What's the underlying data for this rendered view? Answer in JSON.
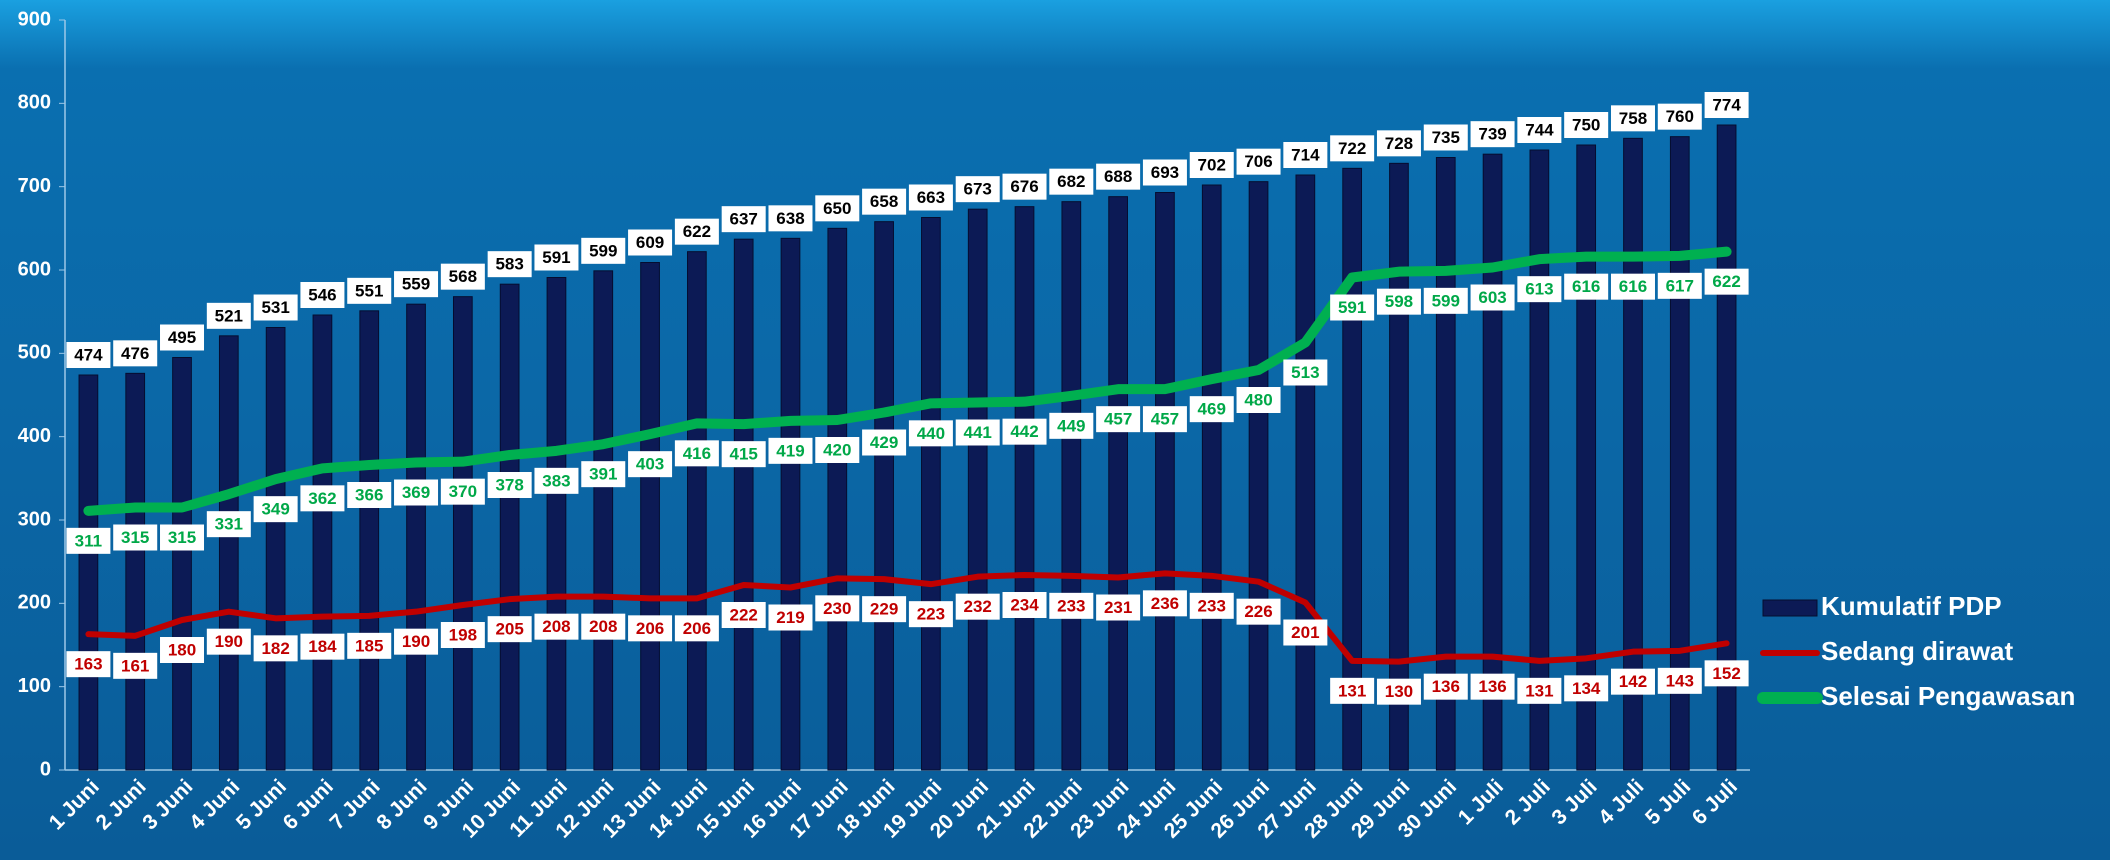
{
  "chart_data": {
    "type": "bar_line",
    "categories": [
      "1 Juni",
      "2 Juni",
      "3 Juni",
      "4 Juni",
      "5 Juni",
      "6 Juni",
      "7 Juni",
      "8 Juni",
      "9 Juni",
      "10 Juni",
      "11 Juni",
      "12 Juni",
      "13 Juni",
      "14 Juni",
      "15 Juni",
      "16 Juni",
      "17 Juni",
      "18 Juni",
      "19 Juni",
      "20 Juni",
      "21 Juni",
      "22 Juni",
      "23 Juni",
      "24 Juni",
      "25 Juni",
      "26 Juni",
      "27 Juni",
      "28 Juni",
      "29 Juni",
      "30 Juni",
      "1 Juli",
      "2 Juli",
      "3 Juli",
      "4 Juli",
      "5 Juli",
      "6 Juli"
    ],
    "series": [
      {
        "name": "Kumulatif PDP",
        "type": "bar",
        "color": "#0c1a55",
        "label_color": "#000000",
        "values": [
          474,
          476,
          495,
          521,
          531,
          546,
          551,
          559,
          568,
          583,
          591,
          599,
          609,
          622,
          637,
          638,
          650,
          658,
          663,
          673,
          676,
          682,
          688,
          693,
          702,
          706,
          714,
          722,
          728,
          735,
          739,
          744,
          750,
          758,
          760,
          774
        ]
      },
      {
        "name": "Sedang dirawat",
        "type": "line",
        "color": "#c00000",
        "label_color": "#c00000",
        "values": [
          163,
          161,
          180,
          190,
          182,
          184,
          185,
          190,
          198,
          205,
          208,
          208,
          206,
          206,
          222,
          219,
          230,
          229,
          223,
          232,
          234,
          233,
          231,
          236,
          233,
          226,
          201,
          131,
          130,
          136,
          136,
          131,
          134,
          142,
          143,
          152
        ]
      },
      {
        "name": "Selesai Pengawasan",
        "type": "line",
        "color": "#00b050",
        "label_color": "#00a848",
        "values": [
          311,
          315,
          315,
          331,
          349,
          362,
          366,
          369,
          370,
          378,
          383,
          391,
          403,
          416,
          415,
          419,
          420,
          429,
          440,
          441,
          442,
          449,
          457,
          457,
          469,
          480,
          513,
          591,
          598,
          599,
          603,
          613,
          616,
          616,
          617,
          622
        ]
      }
    ],
    "ylim": [
      0,
      900
    ],
    "yticks": [
      0,
      100,
      200,
      300,
      400,
      500,
      600,
      700,
      800,
      900
    ],
    "legend": "right"
  }
}
